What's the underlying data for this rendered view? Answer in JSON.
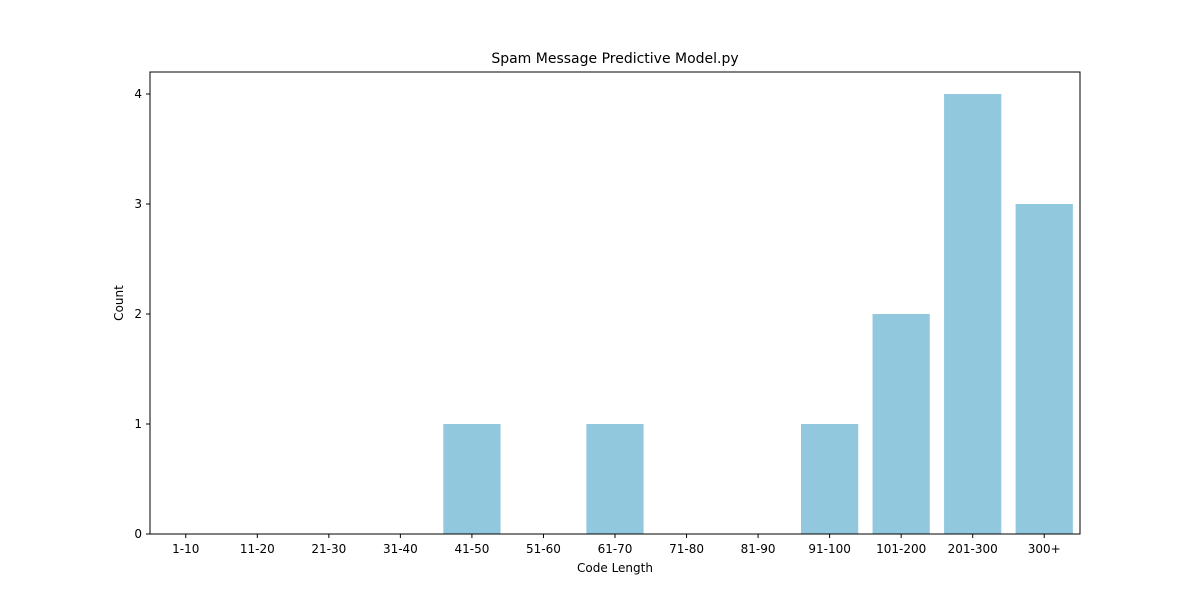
{
  "chart_data": {
    "type": "bar",
    "title": "Spam Message Predictive Model.py",
    "xlabel": "Code Length",
    "ylabel": "Count",
    "categories": [
      "1-10",
      "11-20",
      "21-30",
      "31-40",
      "41-50",
      "51-60",
      "61-70",
      "71-80",
      "81-90",
      "91-100",
      "101-200",
      "201-300",
      "300+"
    ],
    "values": [
      0,
      0,
      0,
      0,
      1,
      0,
      1,
      0,
      0,
      1,
      2,
      4,
      3
    ],
    "ylim": [
      0,
      4.2
    ],
    "yticks": [
      0,
      1,
      2,
      3,
      4
    ],
    "bar_color": "#92c8de",
    "grid": false,
    "legend": null
  }
}
